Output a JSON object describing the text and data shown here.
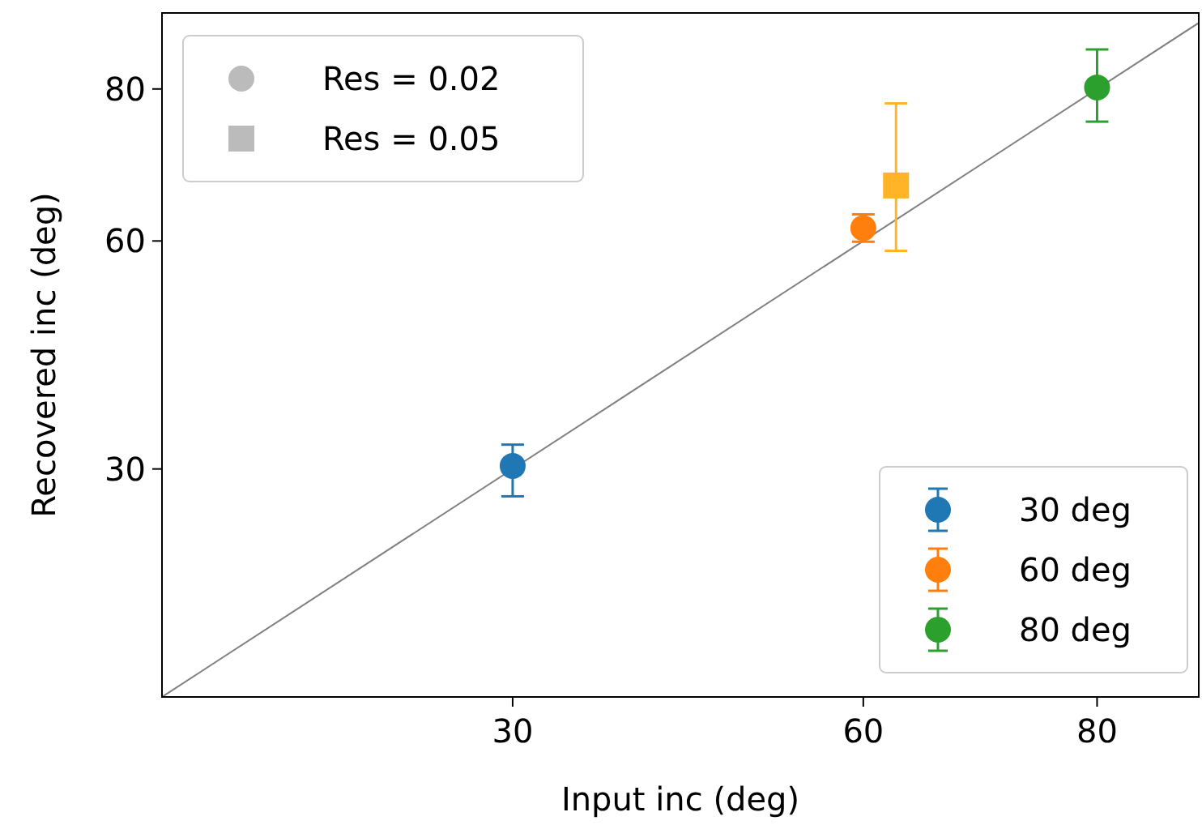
{
  "chart_data": {
    "type": "scatter",
    "xlabel": "Input inc (deg)",
    "ylabel": "Recovered inc (deg)",
    "xlim": [
      0,
      88.7
    ],
    "ylim": [
      0,
      90
    ],
    "xticks": [
      30,
      60,
      80
    ],
    "yticks": [
      30,
      60,
      80
    ],
    "grid": false,
    "legend": "bottom right",
    "series": [
      {
        "type": "line",
        "color": "#808080",
        "x": [
          0,
          88.7
        ],
        "values": [
          0,
          88.7
        ],
        "marker": "none"
      },
      {
        "name": "Res = 0.02",
        "color": "#bbbbbb",
        "marker": "circle"
      },
      {
        "name": "Res = 0.05",
        "color": "#bbbbbb",
        "marker": "square"
      },
      {
        "name": "30 deg",
        "color": "#1f77b4",
        "x": [
          30
        ],
        "values": [
          30.4
        ],
        "errors": [
          [
            26.4,
            33.2
          ]
        ],
        "marker": "circle"
      },
      {
        "name": "60 deg",
        "color": "#ff7f0e",
        "x": [
          60
        ],
        "values": [
          61.7
        ],
        "errors": [
          [
            59.9,
            63.5
          ]
        ],
        "marker": "circle"
      },
      {
        "name": "80 deg",
        "color": "#2ca02c",
        "x": [
          80
        ],
        "values": [
          80.2
        ],
        "errors": [
          [
            75.7,
            85.2
          ]
        ],
        "marker": "circle"
      },
      {
        "color": "#ffb327",
        "x": [
          62.8
        ],
        "values": [
          67.3
        ],
        "errors": [
          [
            58.7,
            78.1
          ]
        ],
        "marker": "square"
      }
    ]
  }
}
